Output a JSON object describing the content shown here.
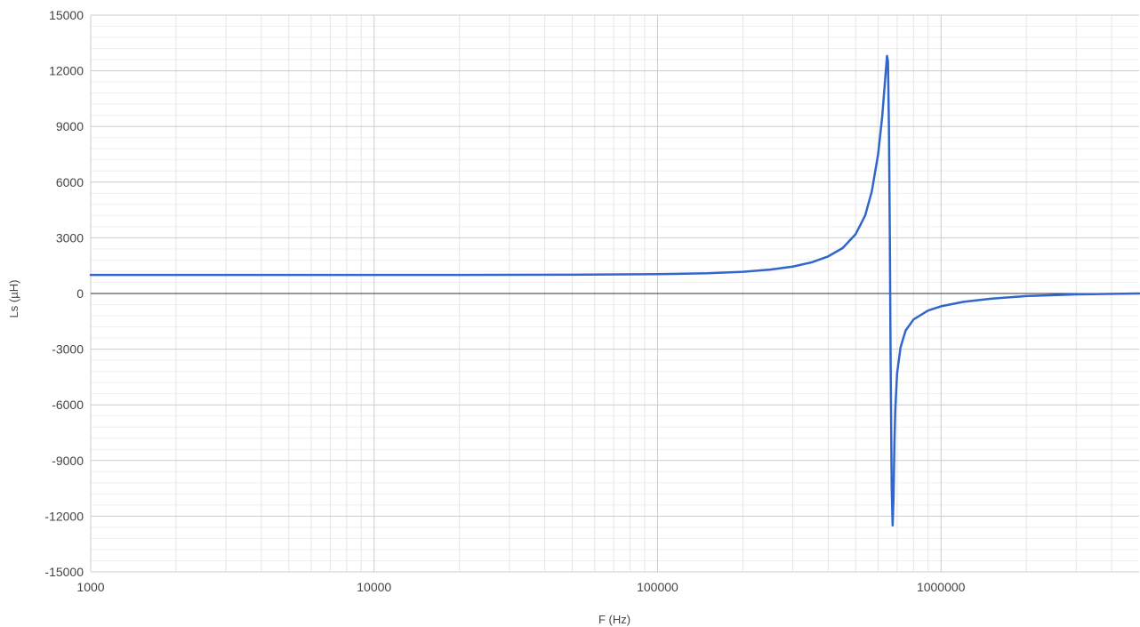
{
  "chart_data": {
    "type": "line",
    "title": "",
    "xlabel": "F (Hz)",
    "ylabel": "Ls (µH)",
    "x_scale": "log",
    "xlim": [
      1000,
      5000000
    ],
    "ylim": [
      -15000,
      15000
    ],
    "x_ticks": [
      1000,
      10000,
      100000,
      1000000
    ],
    "x_tick_labels": [
      "1000",
      "10000",
      "100000",
      "1000000"
    ],
    "y_ticks": [
      15000,
      12000,
      9000,
      6000,
      3000,
      0,
      -3000,
      -6000,
      -9000,
      -12000,
      -15000
    ],
    "y_tick_labels": [
      "15000",
      "12000",
      "9000",
      "6000",
      "3000",
      "0",
      "-3000",
      "-6000",
      "-9000",
      "-12000",
      "-15000"
    ],
    "grid": true,
    "legend": "none",
    "series": [
      {
        "color": "#3366cc",
        "x": [
          1000,
          2000,
          5000,
          10000,
          20000,
          50000,
          100000,
          150000,
          200000,
          250000,
          300000,
          350000,
          400000,
          450000,
          500000,
          540000,
          570000,
          600000,
          620000,
          635000,
          645000,
          650000,
          655000,
          660000,
          663000,
          666000,
          670000,
          675000,
          680000,
          685000,
          690000,
          700000,
          720000,
          750000,
          800000,
          900000,
          1000000,
          1200000,
          1500000,
          2000000,
          3000000,
          5000000
        ],
        "y": [
          1000,
          1000,
          1000,
          1000,
          1000,
          1010,
          1040,
          1090,
          1170,
          1290,
          1450,
          1680,
          2000,
          2450,
          3200,
          4200,
          5500,
          7500,
          9500,
          11500,
          12800,
          12500,
          9000,
          3000,
          -2000,
          -6000,
          -10500,
          -12500,
          -11000,
          -8000,
          -6200,
          -4300,
          -2900,
          -2000,
          -1400,
          -920,
          -690,
          -450,
          -280,
          -140,
          -50,
          0
        ]
      }
    ]
  }
}
